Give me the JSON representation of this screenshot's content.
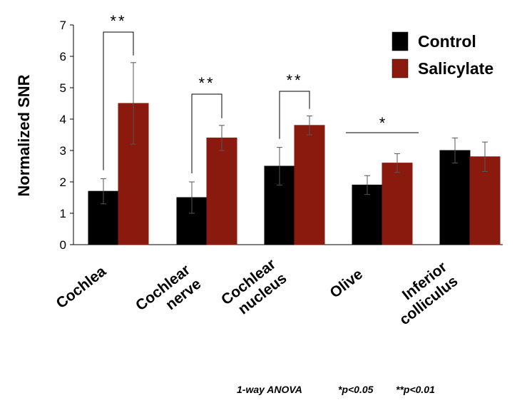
{
  "chart_data": {
    "type": "bar",
    "title": "",
    "xlabel": "",
    "ylabel": "Normalized SNR",
    "ylim": [
      0,
      7
    ],
    "yticks": [
      "0",
      "1",
      "2",
      "3",
      "4",
      "5",
      "6",
      "7"
    ],
    "categories": [
      [
        "Cochlea"
      ],
      [
        "Cochlear",
        "nerve"
      ],
      [
        "Cochlear",
        "nucleus"
      ],
      [
        "Olive"
      ],
      [
        "Inferior",
        "colliculus"
      ]
    ],
    "series": [
      {
        "name": "Control",
        "color": "#000000",
        "values": [
          1.7,
          1.5,
          2.5,
          1.9,
          3.0
        ],
        "errors": [
          0.4,
          0.5,
          0.6,
          0.3,
          0.4
        ]
      },
      {
        "name": "Salicylate",
        "color": "#8B1A0E",
        "values": [
          4.5,
          3.4,
          3.8,
          2.6,
          2.8
        ],
        "errors": [
          1.3,
          0.4,
          0.3,
          0.3,
          0.47
        ]
      }
    ],
    "significance": [
      {
        "category_index": 0,
        "label": "**",
        "style": "bracket"
      },
      {
        "category_index": 1,
        "label": "**",
        "style": "bracket"
      },
      {
        "category_index": 2,
        "label": "**",
        "style": "bracket"
      },
      {
        "category_index": 3,
        "label": "*",
        "style": "line"
      }
    ],
    "legend_position": "top-right",
    "footnote": {
      "test": "1-way ANOVA",
      "p1": "*p<0.05",
      "p2": "**p<0.01"
    }
  }
}
